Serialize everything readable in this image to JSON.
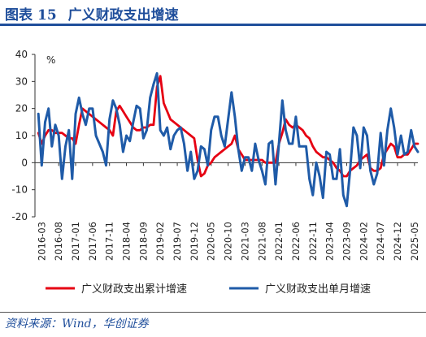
{
  "figure": {
    "label": "图表",
    "number": "15",
    "title": "广义财政支出增速"
  },
  "source": "资料来源：Wind，华创证券",
  "chart_data": {
    "type": "line",
    "ylabel": "%",
    "ylim": [
      -20,
      40
    ],
    "yticks": [
      -20,
      -10,
      0,
      10,
      20,
      30,
      40
    ],
    "xlim": [
      "2016-01",
      "2025-06"
    ],
    "xticks": [
      "2016-03",
      "2016-08",
      "2017-01",
      "2017-06",
      "2017-11",
      "2018-04",
      "2018-09",
      "2019-02",
      "2019-07",
      "2019-12",
      "2020-05",
      "2020-10",
      "2021-03",
      "2021-08",
      "2022-01",
      "2022-06",
      "2022-11",
      "2023-04",
      "2023-09",
      "2024-02",
      "2024-07",
      "2024-12",
      "2025-05"
    ],
    "legend_position": "bottom",
    "grid": false,
    "series": [
      {
        "name": "广义财政支出累计增速",
        "color": "#e60012",
        "points": [
          [
            "2016-02",
            11
          ],
          [
            "2016-03",
            7
          ],
          [
            "2016-04",
            10
          ],
          [
            "2016-05",
            12
          ],
          [
            "2016-06",
            12
          ],
          [
            "2016-07",
            11
          ],
          [
            "2016-08",
            11
          ],
          [
            "2016-09",
            11
          ],
          [
            "2016-10",
            10
          ],
          [
            "2016-11",
            9
          ],
          [
            "2016-12",
            9
          ],
          [
            "2017-01",
            7
          ],
          [
            "2017-02",
            14
          ],
          [
            "2017-03",
            20
          ],
          [
            "2017-04",
            19
          ],
          [
            "2017-05",
            18
          ],
          [
            "2017-06",
            17
          ],
          [
            "2017-07",
            16
          ],
          [
            "2017-08",
            15
          ],
          [
            "2017-09",
            14
          ],
          [
            "2017-10",
            13
          ],
          [
            "2017-11",
            12
          ],
          [
            "2017-12",
            10
          ],
          [
            "2018-01",
            19
          ],
          [
            "2018-02",
            21
          ],
          [
            "2018-03",
            19
          ],
          [
            "2018-04",
            17
          ],
          [
            "2018-05",
            15
          ],
          [
            "2018-06",
            13
          ],
          [
            "2018-07",
            12
          ],
          [
            "2018-08",
            12
          ],
          [
            "2018-09",
            13
          ],
          [
            "2018-10",
            13
          ],
          [
            "2018-11",
            14
          ],
          [
            "2018-12",
            14
          ],
          [
            "2019-01",
            28
          ],
          [
            "2019-02",
            32
          ],
          [
            "2019-03",
            22
          ],
          [
            "2019-04",
            19
          ],
          [
            "2019-05",
            16
          ],
          [
            "2019-06",
            15
          ],
          [
            "2019-07",
            14
          ],
          [
            "2019-08",
            13
          ],
          [
            "2019-09",
            12
          ],
          [
            "2019-10",
            11
          ],
          [
            "2019-11",
            10
          ],
          [
            "2019-12",
            9
          ],
          [
            "2020-01",
            1
          ],
          [
            "2020-02",
            -5
          ],
          [
            "2020-03",
            -4
          ],
          [
            "2020-04",
            -1
          ],
          [
            "2020-05",
            0
          ],
          [
            "2020-06",
            2
          ],
          [
            "2020-07",
            3
          ],
          [
            "2020-08",
            4
          ],
          [
            "2020-09",
            5
          ],
          [
            "2020-10",
            6
          ],
          [
            "2020-11",
            7
          ],
          [
            "2020-12",
            10
          ],
          [
            "2021-01",
            5
          ],
          [
            "2021-02",
            3
          ],
          [
            "2021-03",
            1
          ],
          [
            "2021-04",
            1
          ],
          [
            "2021-05",
            1
          ],
          [
            "2021-06",
            1
          ],
          [
            "2021-07",
            1
          ],
          [
            "2021-08",
            1
          ],
          [
            "2021-09",
            0
          ],
          [
            "2021-10",
            0
          ],
          [
            "2021-11",
            0
          ],
          [
            "2021-12",
            0
          ],
          [
            "2022-01",
            7
          ],
          [
            "2022-02",
            11
          ],
          [
            "2022-03",
            16
          ],
          [
            "2022-04",
            14
          ],
          [
            "2022-05",
            13
          ],
          [
            "2022-06",
            14
          ],
          [
            "2022-07",
            13
          ],
          [
            "2022-08",
            12
          ],
          [
            "2022-09",
            10
          ],
          [
            "2022-10",
            9
          ],
          [
            "2022-11",
            6
          ],
          [
            "2022-12",
            4
          ],
          [
            "2023-01",
            3
          ],
          [
            "2023-02",
            2
          ],
          [
            "2023-03",
            2
          ],
          [
            "2023-04",
            1
          ],
          [
            "2023-05",
            0
          ],
          [
            "2023-06",
            -2
          ],
          [
            "2023-07",
            -3
          ],
          [
            "2023-08",
            -5
          ],
          [
            "2023-09",
            -5
          ],
          [
            "2023-10",
            -3
          ],
          [
            "2023-11",
            -2
          ],
          [
            "2023-12",
            -1
          ],
          [
            "2024-01",
            1
          ],
          [
            "2024-02",
            2
          ],
          [
            "2024-03",
            3
          ],
          [
            "2024-04",
            -2
          ],
          [
            "2024-05",
            -3
          ],
          [
            "2024-06",
            -3
          ],
          [
            "2024-07",
            -2
          ],
          [
            "2024-08",
            3
          ],
          [
            "2024-09",
            5
          ],
          [
            "2024-10",
            7
          ],
          [
            "2024-11",
            6
          ],
          [
            "2024-12",
            2
          ],
          [
            "2025-01",
            2
          ],
          [
            "2025-02",
            3
          ],
          [
            "2025-03",
            3
          ],
          [
            "2025-04",
            5
          ],
          [
            "2025-05",
            7
          ],
          [
            "2025-06",
            7
          ]
        ]
      },
      {
        "name": "广义财政支出单月增速",
        "color": "#1f5ba8",
        "points": [
          [
            "2016-02",
            18
          ],
          [
            "2016-03",
            -1
          ],
          [
            "2016-04",
            15
          ],
          [
            "2016-05",
            20
          ],
          [
            "2016-06",
            6
          ],
          [
            "2016-07",
            14
          ],
          [
            "2016-08",
            10
          ],
          [
            "2016-09",
            -6
          ],
          [
            "2016-10",
            6
          ],
          [
            "2016-11",
            12
          ],
          [
            "2016-12",
            -6
          ],
          [
            "2017-01",
            18
          ],
          [
            "2017-02",
            24
          ],
          [
            "2017-03",
            18
          ],
          [
            "2017-04",
            14
          ],
          [
            "2017-05",
            20
          ],
          [
            "2017-06",
            20
          ],
          [
            "2017-07",
            10
          ],
          [
            "2017-08",
            7
          ],
          [
            "2017-09",
            4
          ],
          [
            "2017-10",
            -1
          ],
          [
            "2017-11",
            16
          ],
          [
            "2017-12",
            23
          ],
          [
            "2018-01",
            20
          ],
          [
            "2018-02",
            14
          ],
          [
            "2018-03",
            4
          ],
          [
            "2018-04",
            10
          ],
          [
            "2018-05",
            8
          ],
          [
            "2018-06",
            15
          ],
          [
            "2018-07",
            21
          ],
          [
            "2018-08",
            20
          ],
          [
            "2018-09",
            9
          ],
          [
            "2018-10",
            12
          ],
          [
            "2018-11",
            24
          ],
          [
            "2018-12",
            29
          ],
          [
            "2019-01",
            33
          ],
          [
            "2019-02",
            12
          ],
          [
            "2019-03",
            10
          ],
          [
            "2019-04",
            13
          ],
          [
            "2019-05",
            5
          ],
          [
            "2019-06",
            10
          ],
          [
            "2019-07",
            12
          ],
          [
            "2019-08",
            13
          ],
          [
            "2019-09",
            7
          ],
          [
            "2019-10",
            -3
          ],
          [
            "2019-11",
            4
          ],
          [
            "2019-12",
            -6
          ],
          [
            "2020-01",
            -3
          ],
          [
            "2020-02",
            6
          ],
          [
            "2020-03",
            5
          ],
          [
            "2020-04",
            -1
          ],
          [
            "2020-05",
            12
          ],
          [
            "2020-06",
            17
          ],
          [
            "2020-07",
            17
          ],
          [
            "2020-08",
            10
          ],
          [
            "2020-09",
            6
          ],
          [
            "2020-10",
            16
          ],
          [
            "2020-11",
            26
          ],
          [
            "2020-12",
            17
          ],
          [
            "2021-01",
            5
          ],
          [
            "2021-02",
            -3
          ],
          [
            "2021-03",
            2
          ],
          [
            "2021-04",
            2
          ],
          [
            "2021-05",
            -3
          ],
          [
            "2021-06",
            7
          ],
          [
            "2021-07",
            1
          ],
          [
            "2021-08",
            -3
          ],
          [
            "2021-09",
            -8
          ],
          [
            "2021-10",
            7
          ],
          [
            "2021-11",
            8
          ],
          [
            "2021-12",
            -8
          ],
          [
            "2022-01",
            7
          ],
          [
            "2022-02",
            23
          ],
          [
            "2022-03",
            12
          ],
          [
            "2022-04",
            7
          ],
          [
            "2022-05",
            7
          ],
          [
            "2022-06",
            17
          ],
          [
            "2022-07",
            6
          ],
          [
            "2022-08",
            6
          ],
          [
            "2022-09",
            6
          ],
          [
            "2022-10",
            -6
          ],
          [
            "2022-11",
            -12
          ],
          [
            "2022-12",
            0
          ],
          [
            "2023-01",
            -5
          ],
          [
            "2023-02",
            -13
          ],
          [
            "2023-03",
            4
          ],
          [
            "2023-04",
            3
          ],
          [
            "2023-05",
            -6
          ],
          [
            "2023-06",
            -6
          ],
          [
            "2023-07",
            5
          ],
          [
            "2023-08",
            -12
          ],
          [
            "2023-09",
            -16
          ],
          [
            "2023-10",
            -3
          ],
          [
            "2023-11",
            13
          ],
          [
            "2023-12",
            10
          ],
          [
            "2024-01",
            -2
          ],
          [
            "2024-02",
            13
          ],
          [
            "2024-03",
            10
          ],
          [
            "2024-04",
            -3
          ],
          [
            "2024-05",
            -8
          ],
          [
            "2024-06",
            -4
          ],
          [
            "2024-07",
            11
          ],
          [
            "2024-08",
            -1
          ],
          [
            "2024-09",
            12
          ],
          [
            "2024-10",
            20
          ],
          [
            "2024-11",
            13
          ],
          [
            "2024-12",
            3
          ],
          [
            "2025-01",
            10
          ],
          [
            "2025-02",
            3
          ],
          [
            "2025-03",
            4
          ],
          [
            "2025-04",
            12
          ],
          [
            "2025-05",
            6
          ],
          [
            "2025-06",
            4
          ]
        ]
      }
    ]
  }
}
